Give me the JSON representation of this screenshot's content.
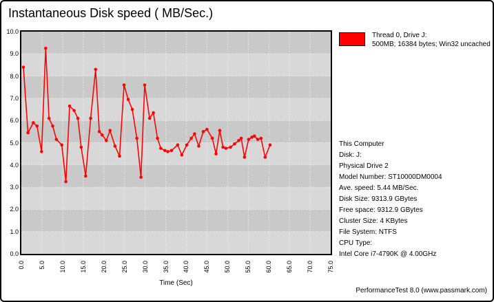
{
  "title": "Instantaneous Disk speed ( MB/Sec.)",
  "legend": {
    "line1": "Thread 0, Drive J:",
    "line2": "500MB; 16384 bytes; Win32 uncached",
    "swatch_color": "#ff0000"
  },
  "info": {
    "lines": [
      "This Computer",
      "Disk: J:",
      "Physical Drive 2",
      "Model Number: ST10000DM0004",
      "Ave. speed: 5.44 MB/Sec.",
      "Disk Size: 9313.9 GBytes",
      "Free space: 9312.9 GBytes",
      "Cluster Size: 4 KBytes",
      "File System: NTFS",
      "CPU Type:",
      "Intel Core i7-4790K @ 4.00GHz"
    ]
  },
  "footer": "PerformanceTest 8.0 (www.passmark.com)",
  "colors": {
    "background": "#ffffff",
    "border": "#000000",
    "band_dark": "#c9c9c9",
    "band_light": "#d8d8d8",
    "gridline": "#eeeeee",
    "series_red": "#ff0000",
    "text": "#000000"
  },
  "chart_data": {
    "type": "line",
    "title": "Instantaneous Disk speed ( MB/Sec.)",
    "xlabel": "Time (Sec)",
    "ylabel": "",
    "xlim": [
      0,
      75
    ],
    "ylim": [
      0,
      10
    ],
    "grid": true,
    "legend_position": "outside-top-right",
    "x_ticks": [
      "0.0",
      "5.0",
      "10.0",
      "15.0",
      "20.0",
      "25.0",
      "30.0",
      "35.0",
      "40.0",
      "45.0",
      "50.0",
      "55.0",
      "60.0",
      "65.0",
      "70.0",
      "75.0"
    ],
    "y_ticks": [
      "10.0",
      "9.0",
      "8.0",
      "7.0",
      "6.0",
      "5.0",
      "4.0",
      "3.0",
      "2.0",
      "1.0",
      "0.0"
    ],
    "series": [
      {
        "name": "Thread 0, Drive J: 500MB; 16384 bytes; Win32 uncached",
        "color": "#ff0000",
        "x": [
          0.5,
          1.6,
          2.9,
          3.8,
          4.9,
          5.9,
          6.7,
          7.6,
          8.5,
          9.8,
          10.8,
          11.7,
          12.8,
          13.7,
          14.5,
          15.6,
          16.8,
          18.0,
          18.9,
          19.6,
          20.6,
          21.5,
          22.7,
          23.8,
          24.9,
          25.9,
          26.9,
          28.0,
          29.0,
          29.9,
          31.1,
          32.0,
          33.0,
          33.8,
          34.8,
          35.5,
          36.4,
          37.9,
          38.9,
          40.1,
          41.2,
          42.0,
          43.0,
          44.1,
          45.0,
          46.3,
          47.2,
          48.1,
          48.9,
          49.6,
          50.7,
          51.7,
          52.7,
          53.3,
          54.1,
          55.1,
          55.9,
          56.5,
          57.3,
          58.1,
          59.1,
          60.3
        ],
        "y": [
          8.4,
          5.45,
          5.9,
          5.75,
          4.6,
          9.25,
          6.1,
          5.75,
          5.15,
          4.9,
          3.25,
          6.65,
          6.45,
          6.1,
          4.8,
          3.5,
          6.1,
          8.3,
          5.5,
          5.35,
          5.1,
          5.55,
          4.85,
          4.4,
          7.6,
          6.95,
          6.5,
          5.2,
          3.45,
          7.6,
          6.1,
          6.35,
          5.2,
          4.75,
          4.65,
          4.6,
          4.65,
          4.9,
          4.45,
          4.9,
          5.2,
          5.4,
          4.85,
          5.5,
          5.6,
          5.2,
          4.5,
          5.55,
          4.8,
          4.75,
          4.8,
          4.95,
          5.1,
          5.2,
          4.35,
          5.15,
          5.25,
          5.3,
          5.15,
          5.2,
          4.35,
          4.9
        ]
      }
    ]
  }
}
